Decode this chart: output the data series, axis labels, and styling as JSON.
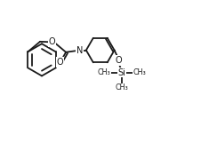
{
  "bg_color": "#ffffff",
  "line_color": "#1a1a1a",
  "lw": 1.3,
  "figsize": [
    2.44,
    1.7
  ],
  "dpi": 100,
  "xlim": [
    0,
    11
  ],
  "ylim": [
    0,
    7.5
  ]
}
